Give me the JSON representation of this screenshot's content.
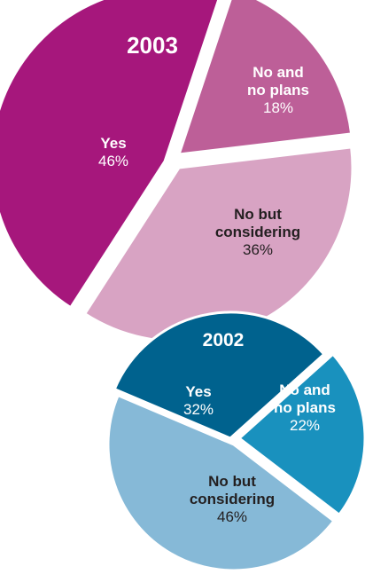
{
  "chart_data": [
    {
      "type": "pie",
      "title": "2003",
      "slices": [
        {
          "label_line1": "Yes",
          "label_line2": "",
          "value": 46,
          "value_label": "46%",
          "color": "#a6177c",
          "text_color": "#ffffff"
        },
        {
          "label_line1": "No and",
          "label_line2": "no plans",
          "value": 18,
          "value_label": "18%",
          "color": "#bd5f98",
          "text_color": "#ffffff"
        },
        {
          "label_line1": "No but",
          "label_line2": "considering",
          "value": 36,
          "value_label": "36%",
          "color": "#d8a3c3",
          "text_color": "#231f20"
        }
      ]
    },
    {
      "type": "pie",
      "title": "2002",
      "slices": [
        {
          "label_line1": "Yes",
          "label_line2": "",
          "value": 32,
          "value_label": "32%",
          "color": "#00628e",
          "text_color": "#ffffff"
        },
        {
          "label_line1": "No and",
          "label_line2": "no plans",
          "value": 22,
          "value_label": "22%",
          "color": "#1991be",
          "text_color": "#ffffff"
        },
        {
          "label_line1": "No but",
          "label_line2": "considering",
          "value": 46,
          "value_label": "46%",
          "color": "#86b9d7",
          "text_color": "#231f20"
        }
      ]
    }
  ]
}
